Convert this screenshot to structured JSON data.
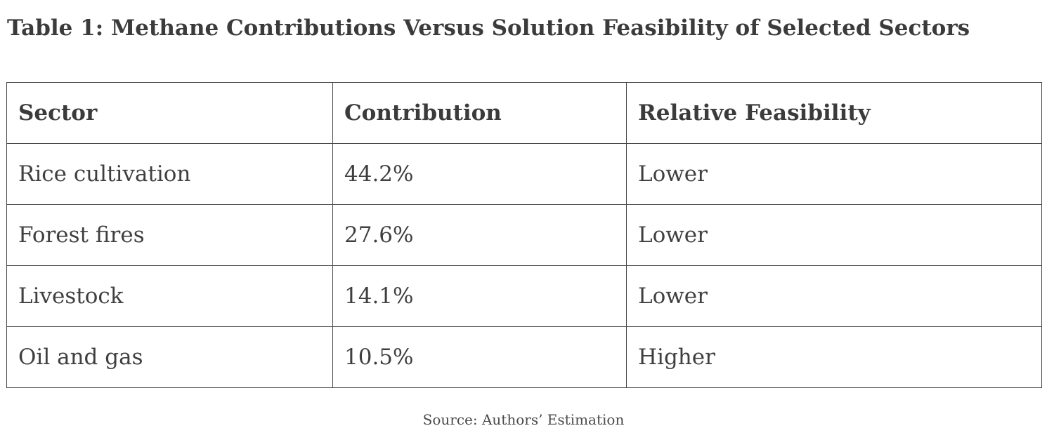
{
  "title": "Table 1: Methane Contributions Versus Solution Feasibility of Selected Sectors",
  "table": {
    "headers": [
      "Sector",
      "Contribution",
      "Relative Feasibility"
    ],
    "rows": [
      [
        "Rice cultivation",
        "44.2%",
        "Lower"
      ],
      [
        "Forest fires",
        "27.6%",
        "Lower"
      ],
      [
        "Livestock",
        "14.1%",
        "Lower"
      ],
      [
        "Oil and gas",
        "10.5%",
        "Higher"
      ]
    ]
  },
  "source": "Source: Authors’ Estimation"
}
